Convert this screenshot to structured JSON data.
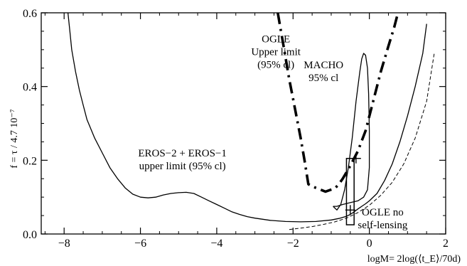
{
  "chart_data": {
    "type": "line",
    "title": "",
    "xlabel": "logM= 2log(⟨t_E⟩/70d)",
    "ylabel": "f = τ / 4.7 10⁻⁷",
    "xlim": [
      -8.6,
      2
    ],
    "ylim": [
      0,
      0.6
    ],
    "x_ticks": [
      "−8",
      "−6",
      "−4",
      "−2",
      "0",
      "2"
    ],
    "y_ticks": [
      "0.0",
      "0.2",
      "0.4",
      "0.6"
    ],
    "grid": false,
    "series": [
      {
        "name": "",
        "style": "solid",
        "x": [
          -7.9,
          -7.85,
          -7.8,
          -7.7,
          -7.6,
          -7.5,
          -7.4,
          -7.2,
          -7.0,
          -6.8,
          -6.6,
          -6.4,
          -6.2,
          -6.0,
          -5.8,
          -5.6,
          -5.4,
          -5.2,
          -5.0,
          -4.8,
          -4.6,
          -4.4,
          -4.2,
          -4.0,
          -3.8,
          -3.6,
          -3.4,
          -3.2,
          -3.0,
          -2.6,
          -2.2,
          -1.8,
          -1.4,
          -1.0,
          -0.8,
          -0.6,
          -0.5,
          -0.4,
          -0.3,
          -0.2,
          -0.1,
          0.0,
          0.2,
          0.4,
          0.6,
          0.8,
          1.0,
          1.2,
          1.4,
          1.5
        ],
        "y": [
          0.6,
          0.55,
          0.5,
          0.44,
          0.39,
          0.35,
          0.31,
          0.26,
          0.22,
          0.18,
          0.15,
          0.125,
          0.108,
          0.1,
          0.098,
          0.1,
          0.106,
          0.11,
          0.112,
          0.113,
          0.11,
          0.1,
          0.09,
          0.08,
          0.07,
          0.06,
          0.053,
          0.047,
          0.043,
          0.037,
          0.034,
          0.033,
          0.034,
          0.038,
          0.042,
          0.048,
          0.053,
          0.06,
          0.068,
          0.075,
          0.082,
          0.09,
          0.11,
          0.145,
          0.19,
          0.25,
          0.32,
          0.4,
          0.49,
          0.57
        ]
      },
      {
        "name": "",
        "style": "dashed",
        "x": [
          -2.1,
          -1.8,
          -1.5,
          -1.2,
          -0.9,
          -0.6,
          -0.3,
          0.0,
          0.3,
          0.6,
          0.9,
          1.2,
          1.5,
          1.7
        ],
        "y": [
          0.012,
          0.016,
          0.02,
          0.026,
          0.033,
          0.043,
          0.058,
          0.078,
          0.105,
          0.14,
          0.19,
          0.26,
          0.36,
          0.49
        ]
      },
      {
        "name": "",
        "style": "dashdot",
        "x": [
          -2.4,
          -2.25,
          -2.1,
          -1.95,
          -1.8,
          -1.7,
          -1.6,
          -1.4,
          -1.15,
          -0.9,
          -0.8,
          -0.7,
          -0.5,
          -0.3,
          -0.1,
          0.1,
          0.3,
          0.5,
          0.65,
          0.75
        ],
        "y": [
          0.6,
          0.51,
          0.42,
          0.34,
          0.26,
          0.2,
          0.135,
          0.125,
          0.115,
          0.124,
          0.135,
          0.15,
          0.185,
          0.225,
          0.28,
          0.36,
          0.44,
          0.51,
          0.56,
          0.6
        ]
      },
      {
        "name": "",
        "style": "solid",
        "x": [
          -0.95,
          -0.85,
          -0.75,
          -0.65,
          -0.55,
          -0.45,
          -0.35,
          -0.25,
          -0.2,
          -0.15,
          -0.1,
          -0.05,
          -0.02,
          0.0,
          0.0,
          -0.05,
          -0.15,
          -0.3,
          -0.5,
          -0.7,
          -0.85,
          -0.95
        ],
        "y": [
          0.075,
          0.065,
          0.08,
          0.12,
          0.18,
          0.26,
          0.36,
          0.44,
          0.475,
          0.49,
          0.485,
          0.45,
          0.38,
          0.28,
          0.18,
          0.12,
          0.1,
          0.09,
          0.085,
          0.08,
          0.075,
          0.075
        ]
      }
    ],
    "markers": [
      {
        "type": "plus",
        "x": -0.35,
        "y": 0.205
      },
      {
        "type": "plus",
        "x": -0.5,
        "y": 0.065
      }
    ],
    "boxes": [
      {
        "x0": -0.6,
        "x1": -0.4,
        "y0": 0.025,
        "y1": 0.205
      }
    ],
    "annotations": [
      {
        "lines": [
          "OGLE",
          "Upper limit",
          "(95% cl)"
        ],
        "x": -2.45,
        "y": 0.52
      },
      {
        "lines": [
          "MACHO",
          "95% cl"
        ],
        "x": -1.2,
        "y": 0.45
      },
      {
        "lines": [
          "EROS−2 + EROS−1",
          "upper limit (95% cl)"
        ],
        "x": -4.9,
        "y": 0.21
      },
      {
        "lines": [
          "OGLE no",
          "self-lensing"
        ],
        "x": 0.35,
        "y": 0.05
      }
    ]
  }
}
